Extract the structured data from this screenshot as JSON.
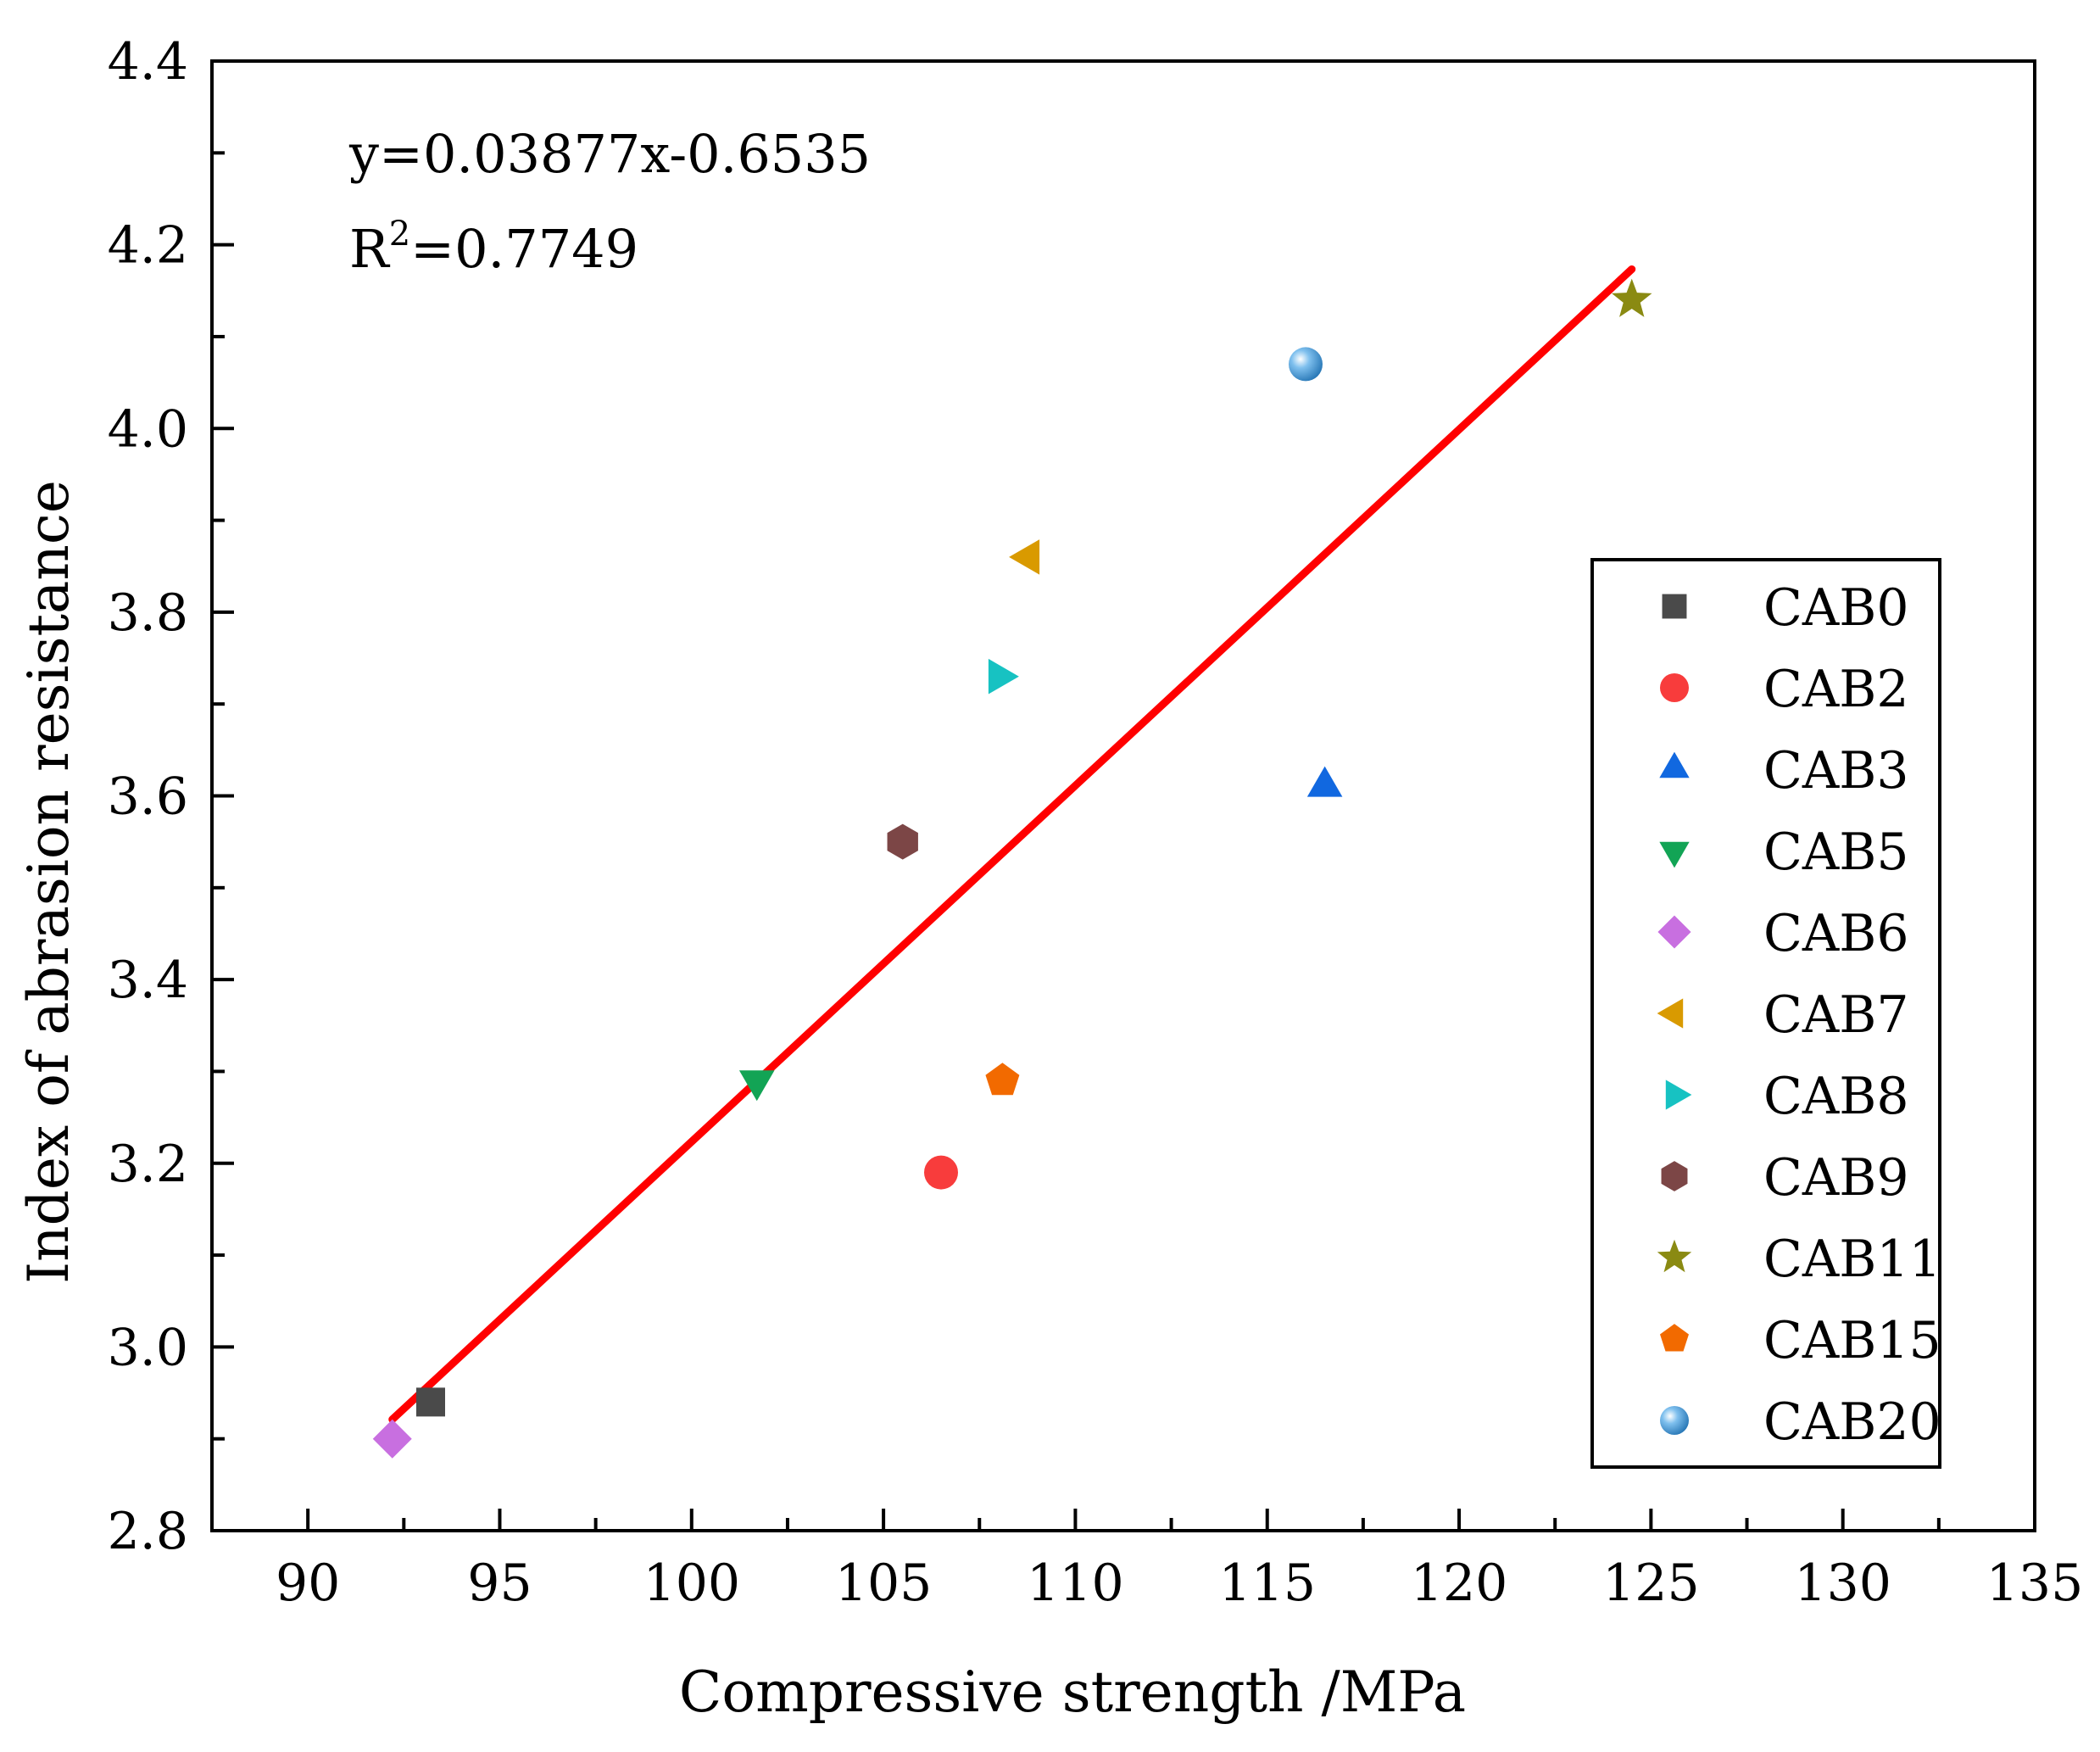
{
  "chart_data": {
    "type": "scatter",
    "title": "",
    "xlabel": "Compressive strength /MPa",
    "ylabel": "Index of abrasion resistance",
    "xlim": [
      87.5,
      135
    ],
    "ylim": [
      2.8,
      4.4
    ],
    "x_ticks": [
      "90",
      "95",
      "100",
      "105",
      "110",
      "115",
      "120",
      "125",
      "130",
      "135"
    ],
    "y_ticks": [
      "2.8",
      "3.0",
      "3.2",
      "3.4",
      "3.6",
      "3.8",
      "4.0",
      "4.2",
      "4.4"
    ],
    "x_tick_values": [
      90,
      95,
      100,
      105,
      110,
      115,
      120,
      125,
      130,
      135
    ],
    "y_tick_values": [
      2.8,
      3.0,
      3.2,
      3.4,
      3.6,
      3.8,
      4.0,
      4.2,
      4.4
    ],
    "grid": false,
    "legend_position": "bottom-right",
    "annotations": {
      "equation": "y=0.03877x-0.6535",
      "r2_prefix": "R",
      "r2_sup": "2",
      "r2_value": "=0.7749"
    },
    "fit_line": {
      "color": "#ff0000",
      "slope": 0.03877,
      "intercept": -0.6535,
      "x_range": [
        92.2,
        124.5
      ]
    },
    "series": [
      {
        "name": "CAB0",
        "marker": "square",
        "color": "#4a4a4a",
        "x": 93.2,
        "y": 2.94
      },
      {
        "name": "CAB2",
        "marker": "circle",
        "color": "#f83c3c",
        "x": 106.5,
        "y": 3.19
      },
      {
        "name": "CAB3",
        "marker": "triangle-up",
        "color": "#1168e0",
        "x": 116.5,
        "y": 3.61
      },
      {
        "name": "CAB5",
        "marker": "triangle-down",
        "color": "#12a455",
        "x": 101.7,
        "y": 3.29
      },
      {
        "name": "CAB6",
        "marker": "diamond",
        "color": "#c86fe0",
        "x": 92.2,
        "y": 2.9
      },
      {
        "name": "CAB7",
        "marker": "triangle-left",
        "color": "#d99a00",
        "x": 108.8,
        "y": 3.86
      },
      {
        "name": "CAB8",
        "marker": "triangle-right",
        "color": "#17c2c2",
        "x": 108.0,
        "y": 3.73
      },
      {
        "name": "CAB9",
        "marker": "hexagon",
        "color": "#7c4646",
        "x": 105.5,
        "y": 3.55
      },
      {
        "name": "CAB11",
        "marker": "star",
        "color": "#8a8a12",
        "x": 124.5,
        "y": 4.14
      },
      {
        "name": "CAB15",
        "marker": "pentagon",
        "color": "#f26a00",
        "x": 108.1,
        "y": 3.29
      },
      {
        "name": "CAB20",
        "marker": "sphere",
        "color": "#3a8fd0",
        "x": 116.0,
        "y": 4.07
      }
    ]
  }
}
